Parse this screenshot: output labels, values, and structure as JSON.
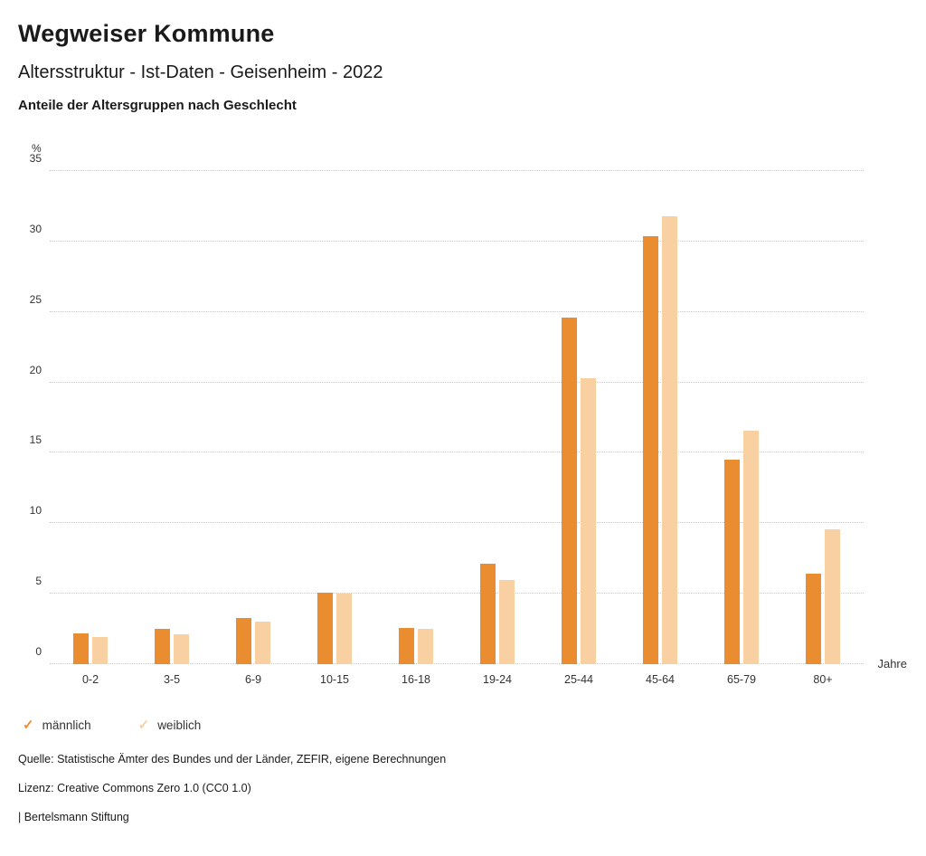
{
  "header": {
    "title": "Wegweiser Kommune",
    "subtitle": "Altersstruktur - Ist-Daten - Geisenheim - 2022",
    "section_title": "Anteile der Altersgruppen nach Geschlecht"
  },
  "chart_data": {
    "type": "bar",
    "title": "Anteile der Altersgruppen nach Geschlecht",
    "unit_label": "%",
    "x_unit_label": "Jahre",
    "ylim": [
      0,
      35
    ],
    "y_ticks": [
      0,
      5,
      10,
      15,
      20,
      25,
      30,
      35
    ],
    "grid": "horizontal-dotted",
    "legend_position": "bottom-left",
    "categories": [
      "0-2",
      "3-5",
      "6-9",
      "10-15",
      "16-18",
      "19-24",
      "25-44",
      "45-64",
      "65-79",
      "80+"
    ],
    "series": [
      {
        "name": "männlich",
        "color": "#EA8C30",
        "values": [
          2.2,
          2.5,
          3.3,
          5.1,
          2.6,
          7.1,
          24.6,
          30.4,
          14.5,
          6.4
        ]
      },
      {
        "name": "weiblich",
        "color": "#F8D0A2",
        "values": [
          1.9,
          2.1,
          3.0,
          5.0,
          2.5,
          6.0,
          20.3,
          31.8,
          16.6,
          9.6
        ]
      }
    ]
  },
  "legend": {
    "check_glyph": "✓"
  },
  "footer": {
    "source": "Quelle: Statistische Ämter des Bundes und der Länder, ZEFIR, eigene Berechnungen",
    "license": "Lizenz: Creative Commons Zero 1.0 (CC0 1.0)",
    "attribution": "| Bertelsmann Stiftung"
  }
}
